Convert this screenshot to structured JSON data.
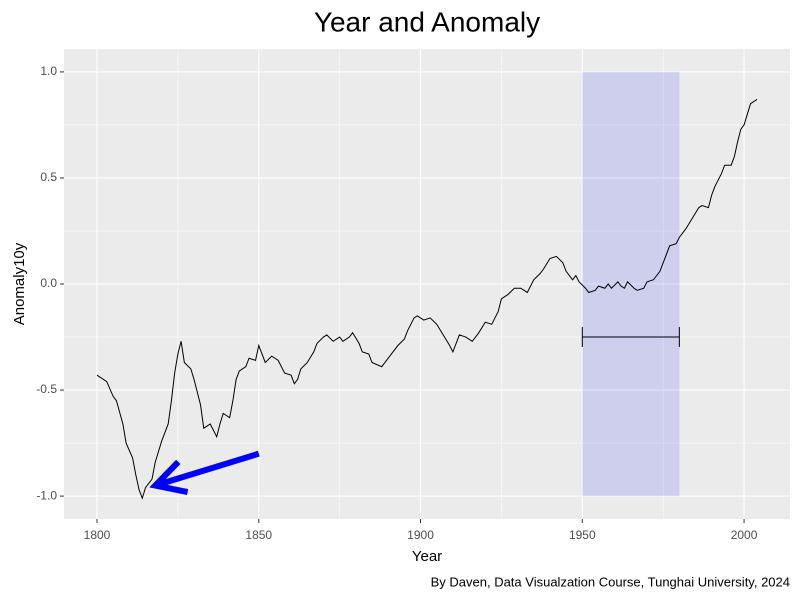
{
  "chart_data": {
    "type": "line",
    "title": "Year and Anomaly",
    "x_label": "Year",
    "y_label": "Anomaly10y",
    "caption": "By Daven, Data Visualzation Course, Tunghai University, 2024",
    "color": "#000000",
    "x": [
      1800,
      1803,
      1805,
      1806,
      1808,
      1809,
      1811,
      1812,
      1813,
      1814,
      1815,
      1817,
      1818,
      1820,
      1822,
      1823,
      1824,
      1825,
      1826,
      1827,
      1829,
      1830,
      1832,
      1833,
      1835,
      1837,
      1838,
      1839,
      1841,
      1842,
      1843,
      1844,
      1846,
      1847,
      1849,
      1850,
      1851,
      1852,
      1854,
      1856,
      1858,
      1860,
      1861,
      1862,
      1863,
      1865,
      1867,
      1868,
      1870,
      1871,
      1873,
      1875,
      1876,
      1878,
      1879,
      1881,
      1882,
      1884,
      1885,
      1888,
      1889,
      1891,
      1893,
      1895,
      1896,
      1898,
      1899,
      1901,
      1903,
      1905,
      1907,
      1909,
      1910,
      1911,
      1912,
      1914,
      1916,
      1918,
      1920,
      1922,
      1924,
      1925,
      1927,
      1929,
      1931,
      1933,
      1934,
      1935,
      1937,
      1938,
      1940,
      1942,
      1944,
      1945,
      1947,
      1948,
      1949,
      1951,
      1952,
      1954,
      1955,
      1957,
      1958,
      1959,
      1961,
      1962,
      1963,
      1964,
      1966,
      1967,
      1969,
      1970,
      1972,
      1974,
      1976,
      1977,
      1979,
      1980,
      1982,
      1984,
      1986,
      1987,
      1989,
      1990,
      1991,
      1993,
      1994,
      1996,
      1997,
      1998,
      1999,
      2000,
      2001,
      2002,
      2004
    ],
    "values": [
      -0.43,
      -0.46,
      -0.53,
      -0.55,
      -0.66,
      -0.75,
      -0.82,
      -0.9,
      -0.97,
      -1.01,
      -0.96,
      -0.92,
      -0.84,
      -0.74,
      -0.66,
      -0.55,
      -0.42,
      -0.33,
      -0.27,
      -0.37,
      -0.4,
      -0.45,
      -0.57,
      -0.68,
      -0.66,
      -0.72,
      -0.66,
      -0.61,
      -0.63,
      -0.55,
      -0.45,
      -0.41,
      -0.39,
      -0.35,
      -0.36,
      -0.29,
      -0.33,
      -0.37,
      -0.34,
      -0.36,
      -0.42,
      -0.43,
      -0.47,
      -0.45,
      -0.4,
      -0.37,
      -0.32,
      -0.28,
      -0.25,
      -0.24,
      -0.27,
      -0.25,
      -0.27,
      -0.25,
      -0.23,
      -0.28,
      -0.32,
      -0.33,
      -0.37,
      -0.39,
      -0.37,
      -0.33,
      -0.29,
      -0.26,
      -0.22,
      -0.16,
      -0.15,
      -0.17,
      -0.16,
      -0.19,
      -0.24,
      -0.29,
      -0.32,
      -0.28,
      -0.24,
      -0.25,
      -0.27,
      -0.23,
      -0.18,
      -0.19,
      -0.13,
      -0.07,
      -0.05,
      -0.02,
      -0.02,
      -0.04,
      -0.01,
      0.02,
      0.05,
      0.07,
      0.12,
      0.13,
      0.1,
      0.06,
      0.02,
      0.04,
      0.01,
      -0.02,
      -0.04,
      -0.03,
      -0.01,
      -0.02,
      0,
      -0.02,
      0.01,
      -0.01,
      -0.02,
      0.01,
      -0.02,
      -0.03,
      -0.02,
      0.01,
      0.02,
      0.06,
      0.14,
      0.18,
      0.19,
      0.22,
      0.26,
      0.31,
      0.36,
      0.37,
      0.36,
      0.42,
      0.46,
      0.52,
      0.56,
      0.56,
      0.6,
      0.67,
      0.73,
      0.75,
      0.8,
      0.85,
      0.87
    ],
    "xlim": [
      1789.8,
      2014.2
    ],
    "ylim": [
      -1.108,
      1.108
    ],
    "xticks": [
      1800,
      1850,
      1900,
      1950,
      2000
    ],
    "yticks": [
      {
        "value": -1,
        "label": "-1.0"
      },
      -0.5,
      {
        "value": 0,
        "label": "0.0"
      },
      0.5,
      {
        "value": 1,
        "label": "1.0"
      }
    ],
    "grid": true,
    "minor_grid": true,
    "annotations": {
      "rect": {
        "x": [
          1950,
          1980
        ],
        "y": [
          -1,
          1
        ],
        "color": "#0000ff"
      },
      "errorbar": {
        "x": [
          1950,
          1980
        ],
        "y": -0.25,
        "color": "#000000"
      },
      "arrow": {
        "x": [
          1850,
          1818
        ],
        "y": [
          -0.8,
          -0.95
        ],
        "color": "#0000ff"
      }
    }
  }
}
